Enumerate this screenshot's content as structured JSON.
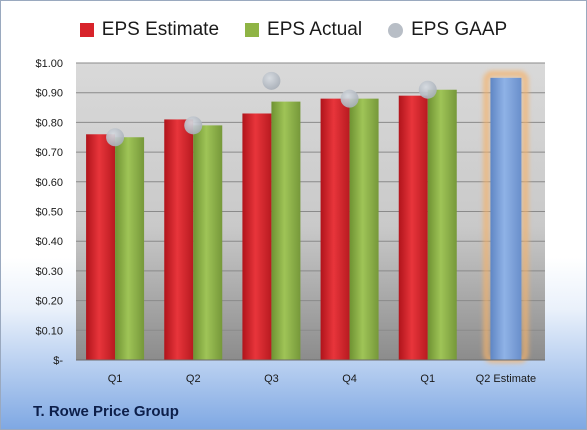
{
  "legend": [
    {
      "label": "EPS Estimate",
      "color": "#d8232a",
      "shape": "square"
    },
    {
      "label": "EPS Actual",
      "color": "#8fb445",
      "shape": "square"
    },
    {
      "label": "EPS GAAP",
      "color": "#b8bec6",
      "shape": "circle"
    }
  ],
  "company": "T. Rowe Price Group",
  "chart_data": {
    "type": "bar",
    "categories": [
      "Q1",
      "Q2",
      "Q3",
      "Q4",
      "Q1",
      "Q2 Estimate"
    ],
    "series": [
      {
        "name": "EPS Estimate",
        "color": "#d8232a",
        "values": [
          0.76,
          0.81,
          0.83,
          0.88,
          0.89,
          null
        ]
      },
      {
        "name": "EPS Actual",
        "color": "#8fb445",
        "values": [
          0.75,
          0.79,
          0.87,
          0.88,
          0.91,
          null
        ]
      },
      {
        "name": "EPS GAAP",
        "color": "#b8bec6",
        "style": "marker",
        "values": [
          0.75,
          0.79,
          0.94,
          0.88,
          0.91,
          null
        ]
      },
      {
        "name": "Q2 Estimate",
        "color": "#7ea3d9",
        "highlight": "#f5b26b",
        "values": [
          null,
          null,
          null,
          null,
          null,
          0.95
        ]
      }
    ],
    "ylim": [
      0,
      1.0
    ],
    "yticks": [
      0,
      0.1,
      0.2,
      0.3,
      0.4,
      0.5,
      0.6,
      0.7,
      0.8,
      0.9,
      1.0
    ],
    "ytick_labels": [
      "$-",
      "$0.10",
      "$0.20",
      "$0.30",
      "$0.40",
      "$0.50",
      "$0.60",
      "$0.70",
      "$0.80",
      "$0.90",
      "$1.00"
    ],
    "grid": true,
    "legend_position": "top"
  }
}
